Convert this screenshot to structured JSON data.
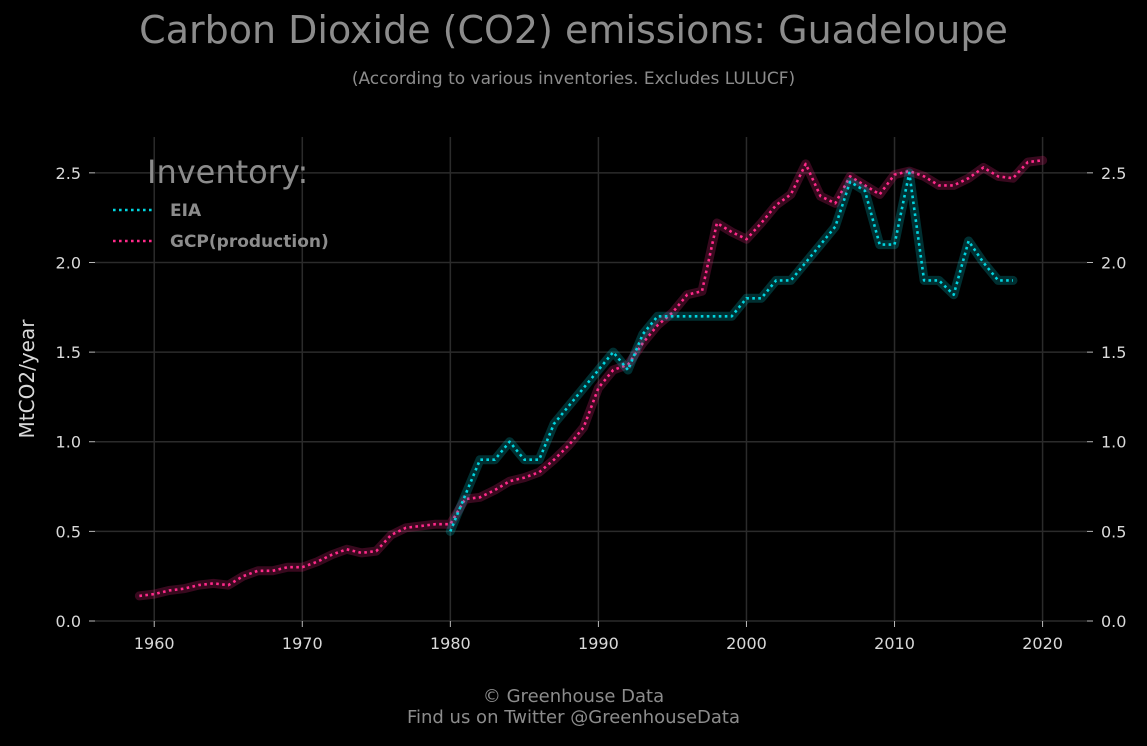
{
  "title": "Carbon Dioxide (CO2) emissions: Guadeloupe",
  "subtitle": "(According to various inventories. Excludes LULUCF)",
  "footer": {
    "line1": "© Greenhouse Data",
    "line2": "Find us on Twitter @GreenhouseData"
  },
  "colors": {
    "background": "#000000",
    "grid": "#2b2b2b",
    "text": "#8c8c8c",
    "EIA": "#00d5e0",
    "GCP(production)": "#ff2a8a"
  },
  "chart_data": {
    "type": "line",
    "title": "Carbon Dioxide (CO2) emissions: Guadeloupe",
    "subtitle": "(According to various inventories. Excludes LULUCF)",
    "xlabel": "",
    "ylabel": "MtCO2/year",
    "xlim": [
      1956,
      2023
    ],
    "ylim": [
      0,
      2.7
    ],
    "xticks": [
      1960,
      1970,
      1980,
      1990,
      2000,
      2010,
      2020
    ],
    "yticks": [
      "0.0",
      "0.5",
      "1.0",
      "1.5",
      "2.0",
      "2.5"
    ],
    "grid": true,
    "line_style": "dotted",
    "legend": {
      "title": "Inventory:",
      "position": "top-left"
    },
    "series": [
      {
        "name": "EIA",
        "x": [
          1980,
          1981,
          1982,
          1983,
          1984,
          1985,
          1986,
          1987,
          1988,
          1989,
          1990,
          1991,
          1992,
          1993,
          1994,
          1995,
          1996,
          1997,
          1998,
          1999,
          2000,
          2001,
          2002,
          2003,
          2004,
          2005,
          2006,
          2007,
          2008,
          2009,
          2010,
          2011,
          2012,
          2013,
          2014,
          2015,
          2016,
          2017,
          2018
        ],
        "y": [
          0.5,
          0.7,
          0.9,
          0.9,
          1.0,
          0.9,
          0.9,
          1.1,
          1.2,
          1.3,
          1.4,
          1.5,
          1.4,
          1.6,
          1.7,
          1.7,
          1.7,
          1.7,
          1.7,
          1.7,
          1.8,
          1.8,
          1.9,
          1.9,
          2.0,
          2.1,
          2.2,
          2.45,
          2.4,
          2.1,
          2.1,
          2.5,
          1.9,
          1.9,
          1.82,
          2.12,
          2.0,
          1.9,
          1.9
        ]
      },
      {
        "name": "GCP(production)",
        "x": [
          1959,
          1960,
          1961,
          1962,
          1963,
          1964,
          1965,
          1966,
          1967,
          1968,
          1969,
          1970,
          1971,
          1972,
          1973,
          1974,
          1975,
          1976,
          1977,
          1978,
          1979,
          1980,
          1981,
          1982,
          1983,
          1984,
          1985,
          1986,
          1987,
          1988,
          1989,
          1990,
          1991,
          1992,
          1993,
          1994,
          1995,
          1996,
          1997,
          1998,
          1999,
          2000,
          2001,
          2002,
          2003,
          2004,
          2005,
          2006,
          2007,
          2008,
          2009,
          2010,
          2011,
          2012,
          2013,
          2014,
          2015,
          2016,
          2017,
          2018,
          2019,
          2020
        ],
        "y": [
          0.14,
          0.15,
          0.17,
          0.18,
          0.2,
          0.21,
          0.2,
          0.25,
          0.28,
          0.28,
          0.3,
          0.3,
          0.33,
          0.37,
          0.4,
          0.38,
          0.39,
          0.48,
          0.52,
          0.53,
          0.54,
          0.54,
          0.68,
          0.69,
          0.73,
          0.78,
          0.8,
          0.83,
          0.9,
          0.98,
          1.08,
          1.3,
          1.4,
          1.43,
          1.55,
          1.65,
          1.72,
          1.82,
          1.84,
          2.22,
          2.17,
          2.13,
          2.22,
          2.32,
          2.38,
          2.55,
          2.37,
          2.33,
          2.48,
          2.43,
          2.38,
          2.49,
          2.51,
          2.48,
          2.43,
          2.43,
          2.47,
          2.53,
          2.48,
          2.47,
          2.56,
          2.57
        ]
      }
    ]
  }
}
